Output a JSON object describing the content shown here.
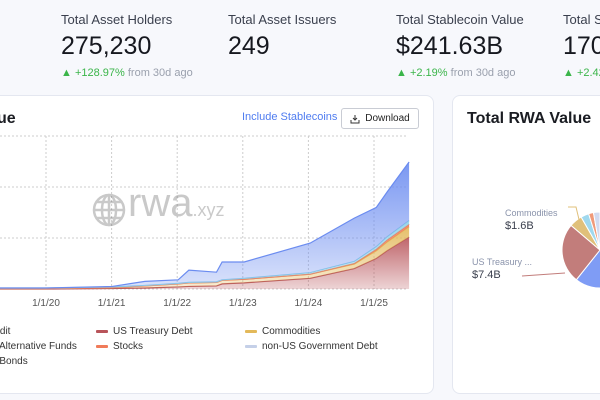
{
  "stats": [
    {
      "label": "Total Asset Holders",
      "value": "275,230",
      "change": "+128.97%",
      "change_suffix": "from 30d ago"
    },
    {
      "label": "Total Asset Issuers",
      "value": "249"
    },
    {
      "label": "Total Stablecoin Value",
      "value": "$241.63B",
      "change": "+2.19%",
      "change_suffix": "from 30d ago"
    },
    {
      "label": "Total St",
      "value": "170.",
      "change": "+2.42"
    }
  ],
  "left_partial_suffix": "o",
  "chart_card": {
    "title": "ue",
    "include_stablecoins": "Include Stablecoins",
    "download": "Download",
    "watermark": "rwa.xyz"
  },
  "legend": [
    {
      "label": "redit",
      "color": "#6b8cf0"
    },
    {
      "label": "US Treasury Debt",
      "color": "#b8545a"
    },
    {
      "label": "Commodities",
      "color": "#e3b95a"
    },
    {
      "label": "al Alternative Funds",
      "color": "#8fd0e8"
    },
    {
      "label": "Stocks",
      "color": "#f07b5a"
    },
    {
      "label": "non-US Government Debt",
      "color": "#c5d0e8"
    },
    {
      "label": "e Bonds",
      "color": "#b48ed8"
    }
  ],
  "chart_data": {
    "type": "area",
    "stacked": true,
    "x_ticks": [
      "1/1/20",
      "1/1/21",
      "1/1/22",
      "1/1/23",
      "1/1/24",
      "1/1/25"
    ],
    "grid": true,
    "x": [
      "2019-01",
      "2020-01",
      "2021-01",
      "2021-07",
      "2022-01",
      "2022-03",
      "2022-08",
      "2022-09",
      "2023-01",
      "2024-01",
      "2024-09",
      "2025-01",
      "2025-03",
      "2025-07"
    ],
    "series": [
      {
        "name": "US Treasury Debt",
        "color": "#b8545a",
        "values": [
          0,
          0,
          0.01,
          0.02,
          0.04,
          0.05,
          0.06,
          0.1,
          0.12,
          0.21,
          0.4,
          0.6,
          0.75,
          1.02
        ]
      },
      {
        "name": "Commodities",
        "color": "#e3b95a",
        "values": [
          0.01,
          0.01,
          0.02,
          0.04,
          0.06,
          0.07,
          0.07,
          0.07,
          0.07,
          0.08,
          0.09,
          0.15,
          0.17,
          0.2
        ]
      },
      {
        "name": "Stocks",
        "color": "#f07b5a",
        "values": [
          0,
          0,
          0,
          0,
          0,
          0,
          0,
          0,
          0,
          0,
          0.01,
          0.03,
          0.04,
          0.05
        ]
      },
      {
        "name": "non-US Government Debt",
        "color": "#8fd0e8",
        "values": [
          0.01,
          0.01,
          0.01,
          0.01,
          0.01,
          0.01,
          0.01,
          0.01,
          0.02,
          0.03,
          0.04,
          0.05,
          0.06,
          0.07
        ]
      },
      {
        "name": "redit",
        "color": "#6b8cf0",
        "values": [
          0,
          0,
          0.01,
          0.08,
          0.07,
          0.24,
          0.19,
          0.35,
          0.32,
          0.58,
          0.85,
          0.77,
          0.88,
          1.15
        ]
      }
    ],
    "ylim": [
      0,
      3
    ]
  },
  "pie_card": {
    "title": "Total RWA Value",
    "chart_data": {
      "type": "pie",
      "slices": [
        {
          "label": "",
          "value": 17.6,
          "color": "#7f9cf5"
        },
        {
          "label": "US Treasury ...",
          "value_label": "$7.4B",
          "value": 7.4,
          "color": "#c27d7b"
        },
        {
          "label": "Commodities",
          "value_label": "$1.6B",
          "value": 1.6,
          "color": "#e0c07a"
        },
        {
          "label": "",
          "value": 1.0,
          "color": "#9fd8ee"
        },
        {
          "label": "",
          "value": 0.6,
          "color": "#f09a7a"
        },
        {
          "label": "",
          "value": 0.8,
          "color": "#d2daf0"
        }
      ]
    }
  }
}
